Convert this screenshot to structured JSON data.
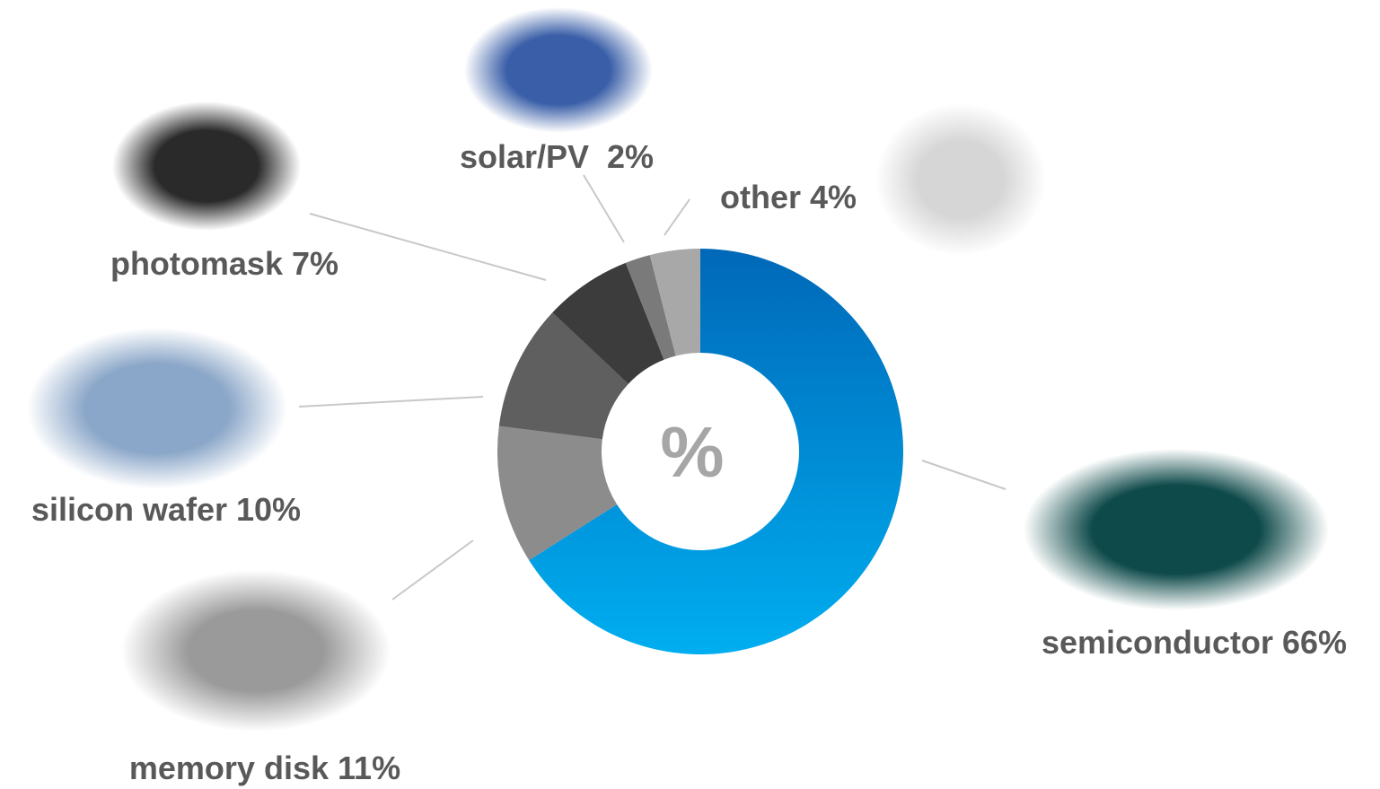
{
  "chart_data": {
    "type": "donut",
    "categories": [
      "semiconductor",
      "memory disk",
      "silicon wafer",
      "photomask",
      "solar/PV",
      "other"
    ],
    "values": [
      66,
      11,
      10,
      7,
      2,
      4
    ],
    "value_labels": [
      "66%",
      "11%",
      "10%",
      "7%",
      "2%",
      "4%"
    ],
    "colors": [
      "#0078c8",
      "#8c8c8c",
      "#5f5f5f",
      "#3c3c3c",
      "#7a7a7a",
      "#a8a8a8"
    ],
    "center_label": "%"
  }
}
